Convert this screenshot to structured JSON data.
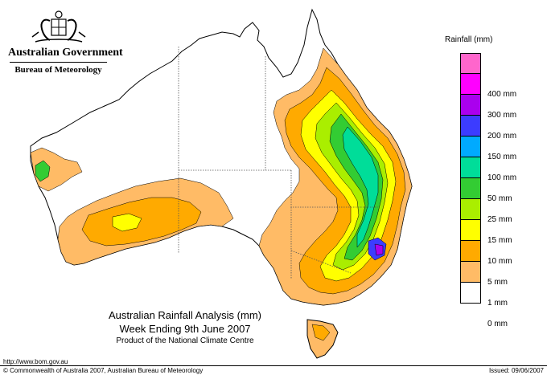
{
  "header": {
    "government": "Australian Government",
    "bureau": "Bureau of Meteorology"
  },
  "caption": {
    "title": "Australian Rainfall Analysis (mm)",
    "week": "Week Ending 9th June 2007",
    "product": "Product of the National Climate Centre"
  },
  "legend": {
    "title": "Rainfall (mm)",
    "items": [
      {
        "label": "",
        "color": "#ff66cc"
      },
      {
        "label": "400 mm",
        "color": "#ff00ff"
      },
      {
        "label": "300 mm",
        "color": "#aa00ee"
      },
      {
        "label": "200 mm",
        "color": "#3c3cff"
      },
      {
        "label": "150 mm",
        "color": "#00aaff"
      },
      {
        "label": "100 mm",
        "color": "#00dd99"
      },
      {
        "label": "50 mm",
        "color": "#33cc33"
      },
      {
        "label": "25 mm",
        "color": "#aaee00"
      },
      {
        "label": "15 mm",
        "color": "#ffff00"
      },
      {
        "label": "10 mm",
        "color": "#ffaa00"
      },
      {
        "label": "5 mm",
        "color": "#ffbb66"
      },
      {
        "label": "1 mm",
        "color": "#ffffff"
      },
      {
        "label": "0 mm",
        "color": ""
      }
    ]
  },
  "footer": {
    "url": "http://www.bom.gov.au",
    "copyright": "© Commonwealth of Australia 2007, Australian Bureau of Meteorology",
    "issued": "Issued: 09/06/2007"
  }
}
